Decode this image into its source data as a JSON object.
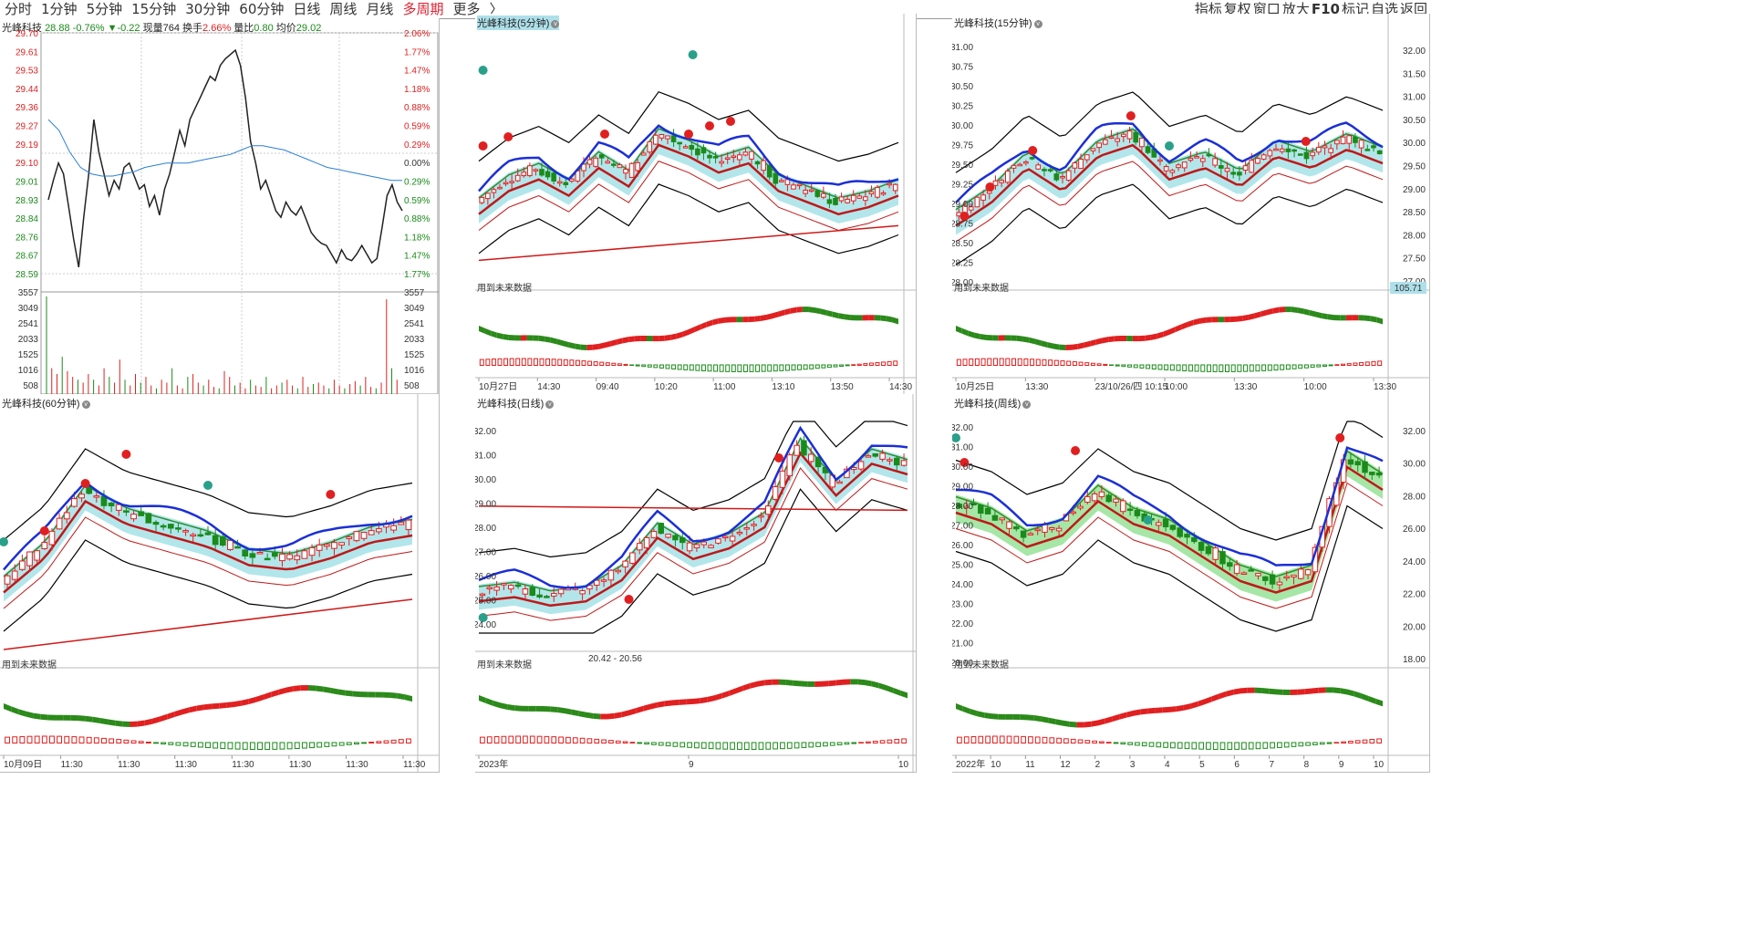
{
  "tabs": [
    {
      "label": "分时"
    },
    {
      "label": "1分钟"
    },
    {
      "label": "5分钟"
    },
    {
      "label": "15分钟"
    },
    {
      "label": "30分钟"
    },
    {
      "label": "60分钟"
    },
    {
      "label": "日线"
    },
    {
      "label": "周线"
    },
    {
      "label": "月线"
    },
    {
      "label": "多周期"
    },
    {
      "label": "更多"
    },
    {
      "label": "〉"
    }
  ],
  "active_tab": "多周期",
  "toolbar_right": [
    {
      "label": "指标"
    },
    {
      "label": "复权"
    },
    {
      "label": "窗口"
    },
    {
      "label": "放大"
    },
    {
      "label": "F10"
    },
    {
      "label": "标记"
    },
    {
      "label": "自选"
    },
    {
      "label": "返回"
    }
  ],
  "intraday": {
    "name": "光峰科技",
    "price": "28.88",
    "change": "-0.76%",
    "delta": "▼-0.22",
    "volume_label": "现量",
    "volume": "764",
    "turnover_label": "换手",
    "turnover": "2.66%",
    "ratio_label": "量比",
    "ratio": "0.80",
    "avg_label": "均价",
    "avg": "29.02",
    "price_ticks_left": [
      "29.70",
      "29.61",
      "29.53",
      "29.44",
      "29.36",
      "29.27",
      "29.19",
      "29.10",
      "29.01",
      "28.93",
      "28.84",
      "28.76",
      "28.67",
      "28.59"
    ],
    "price_ticks_right": [
      "2.06%",
      "1.77%",
      "1.47%",
      "1.18%",
      "0.88%",
      "0.59%",
      "0.29%",
      "0.00%",
      "0.29%",
      "0.59%",
      "0.88%",
      "1.18%",
      "1.47%",
      "1.77%"
    ],
    "vol_ticks": [
      "3557",
      "3049",
      "2541",
      "2033",
      "1525",
      "1016",
      "508"
    ],
    "price_line": [
      28.93,
      29.02,
      29.1,
      29.05,
      28.9,
      28.75,
      28.62,
      28.85,
      29.05,
      29.3,
      29.15,
      29.05,
      28.95,
      29.02,
      28.98,
      29.08,
      29.1,
      29.04,
      28.98,
      29.0,
      28.9,
      28.95,
      28.86,
      28.98,
      29.05,
      29.15,
      29.25,
      29.18,
      29.3,
      29.35,
      29.4,
      29.45,
      29.5,
      29.48,
      29.55,
      29.58,
      29.6,
      29.62,
      29.55,
      29.4,
      29.2,
      29.1,
      28.98,
      29.02,
      28.95,
      28.88,
      28.85,
      28.92,
      28.88,
      28.86,
      28.9,
      28.84,
      28.78,
      28.75,
      28.73,
      28.72,
      28.68,
      28.64,
      28.7,
      28.66,
      28.65,
      28.68,
      28.72,
      28.68,
      28.64,
      28.66,
      28.8,
      28.95,
      29.0,
      28.92,
      28.88
    ],
    "avg_line": [
      29.3,
      29.25,
      29.15,
      29.08,
      29.05,
      29.04,
      29.04,
      29.05,
      29.06,
      29.08,
      29.09,
      29.1,
      29.1,
      29.1,
      29.11,
      29.12,
      29.13,
      29.14,
      29.16,
      29.18,
      29.18,
      29.17,
      29.16,
      29.14,
      29.12,
      29.1,
      29.08,
      29.07,
      29.06,
      29.05,
      29.04,
      29.03,
      29.02,
      29.02
    ],
    "volumes": [
      3400,
      900,
      700,
      1300,
      800,
      600,
      500,
      400,
      700,
      500,
      300,
      900,
      600,
      400,
      1200,
      500,
      300,
      700,
      400,
      600,
      300,
      200,
      500,
      400,
      900,
      300,
      200,
      600,
      700,
      400,
      300,
      500,
      250,
      200,
      800,
      600,
      300,
      400,
      200,
      500,
      300,
      250,
      600,
      200,
      300,
      400,
      500,
      300,
      200,
      600,
      250,
      350,
      400,
      300,
      200,
      500,
      300,
      200,
      350,
      450,
      300,
      600,
      250,
      200,
      400,
      3300,
      900,
      500
    ]
  },
  "panels": [
    {
      "id": "m5",
      "title": "光峰科技(5分钟)",
      "note": "用到未来数据",
      "x_labels": [
        "10月27日",
        "14:30",
        "09:40",
        "10:20",
        "11:00",
        "13:10",
        "13:50",
        "14:30"
      ],
      "y_ticks": []
    },
    {
      "id": "m15",
      "title": "光峰科技(15分钟)",
      "note": "用到未来数据",
      "x_labels": [
        "10月25日",
        "13:30",
        "23/10/26/四 10:15",
        "10:00",
        "13:30",
        "10:00",
        "13:30"
      ],
      "y_ticks": [
        "31.00",
        "30.75",
        "30.50",
        "30.25",
        "30.00",
        "29.75",
        "29.50",
        "29.25",
        "29.00",
        "28.75",
        "28.50",
        "28.25",
        "28.00"
      ],
      "right_ticks": [
        "32.00",
        "31.50",
        "31.00",
        "30.50",
        "30.00",
        "29.50",
        "29.00",
        "28.50",
        "28.00",
        "27.50",
        "27.00"
      ],
      "right_value": "105.71",
      "osc_level": "50.00"
    },
    {
      "id": "m60",
      "title": "光峰科技(60分钟)",
      "note": "用到未来数据",
      "x_labels": [
        "10月09日",
        "11:30",
        "11:30",
        "11:30",
        "11:30",
        "11:30",
        "11:30",
        "11:30"
      ],
      "y_ticks": []
    },
    {
      "id": "day",
      "title": "光峰科技(日线)",
      "note": "用到未来数据",
      "range_label": "20.42 - 20.56",
      "x_labels": [
        "2023年",
        "9",
        "10"
      ],
      "y_ticks": [
        "32.00",
        "31.00",
        "30.00",
        "29.00",
        "28.00",
        "27.00",
        "26.00",
        "25.00",
        "24.00"
      ],
      "osc_level": "50.00"
    },
    {
      "id": "week",
      "title": "光峰科技(周线)",
      "note": "用到未来数据",
      "x_labels": [
        "2022年",
        "10",
        "11",
        "12",
        "2",
        "3",
        "4",
        "5",
        "6",
        "7",
        "8",
        "9",
        "10"
      ],
      "y_ticks": [
        "32.00",
        "31.00",
        "30.00",
        "29.00",
        "28.00",
        "27.00",
        "26.00",
        "25.00",
        "24.00",
        "23.00",
        "22.00",
        "21.00",
        "20.00"
      ],
      "right_ticks": [
        "32.00",
        "30.00",
        "28.00",
        "26.00",
        "24.00",
        "22.00",
        "20.00",
        "18.00"
      ],
      "osc_level": "50.00"
    }
  ],
  "colors": {
    "up": "#e02020",
    "down": "#1a8a1a",
    "ma_blue": "#1b2fd6",
    "cloud": "#9fe0e6",
    "cloud_green": "#90e090"
  },
  "icons": [
    "red-coin-icon",
    "green-coin-icon",
    "butterfly-icon",
    "arrow-up-icon",
    "arrow-down-icon",
    "chevron-icon"
  ]
}
